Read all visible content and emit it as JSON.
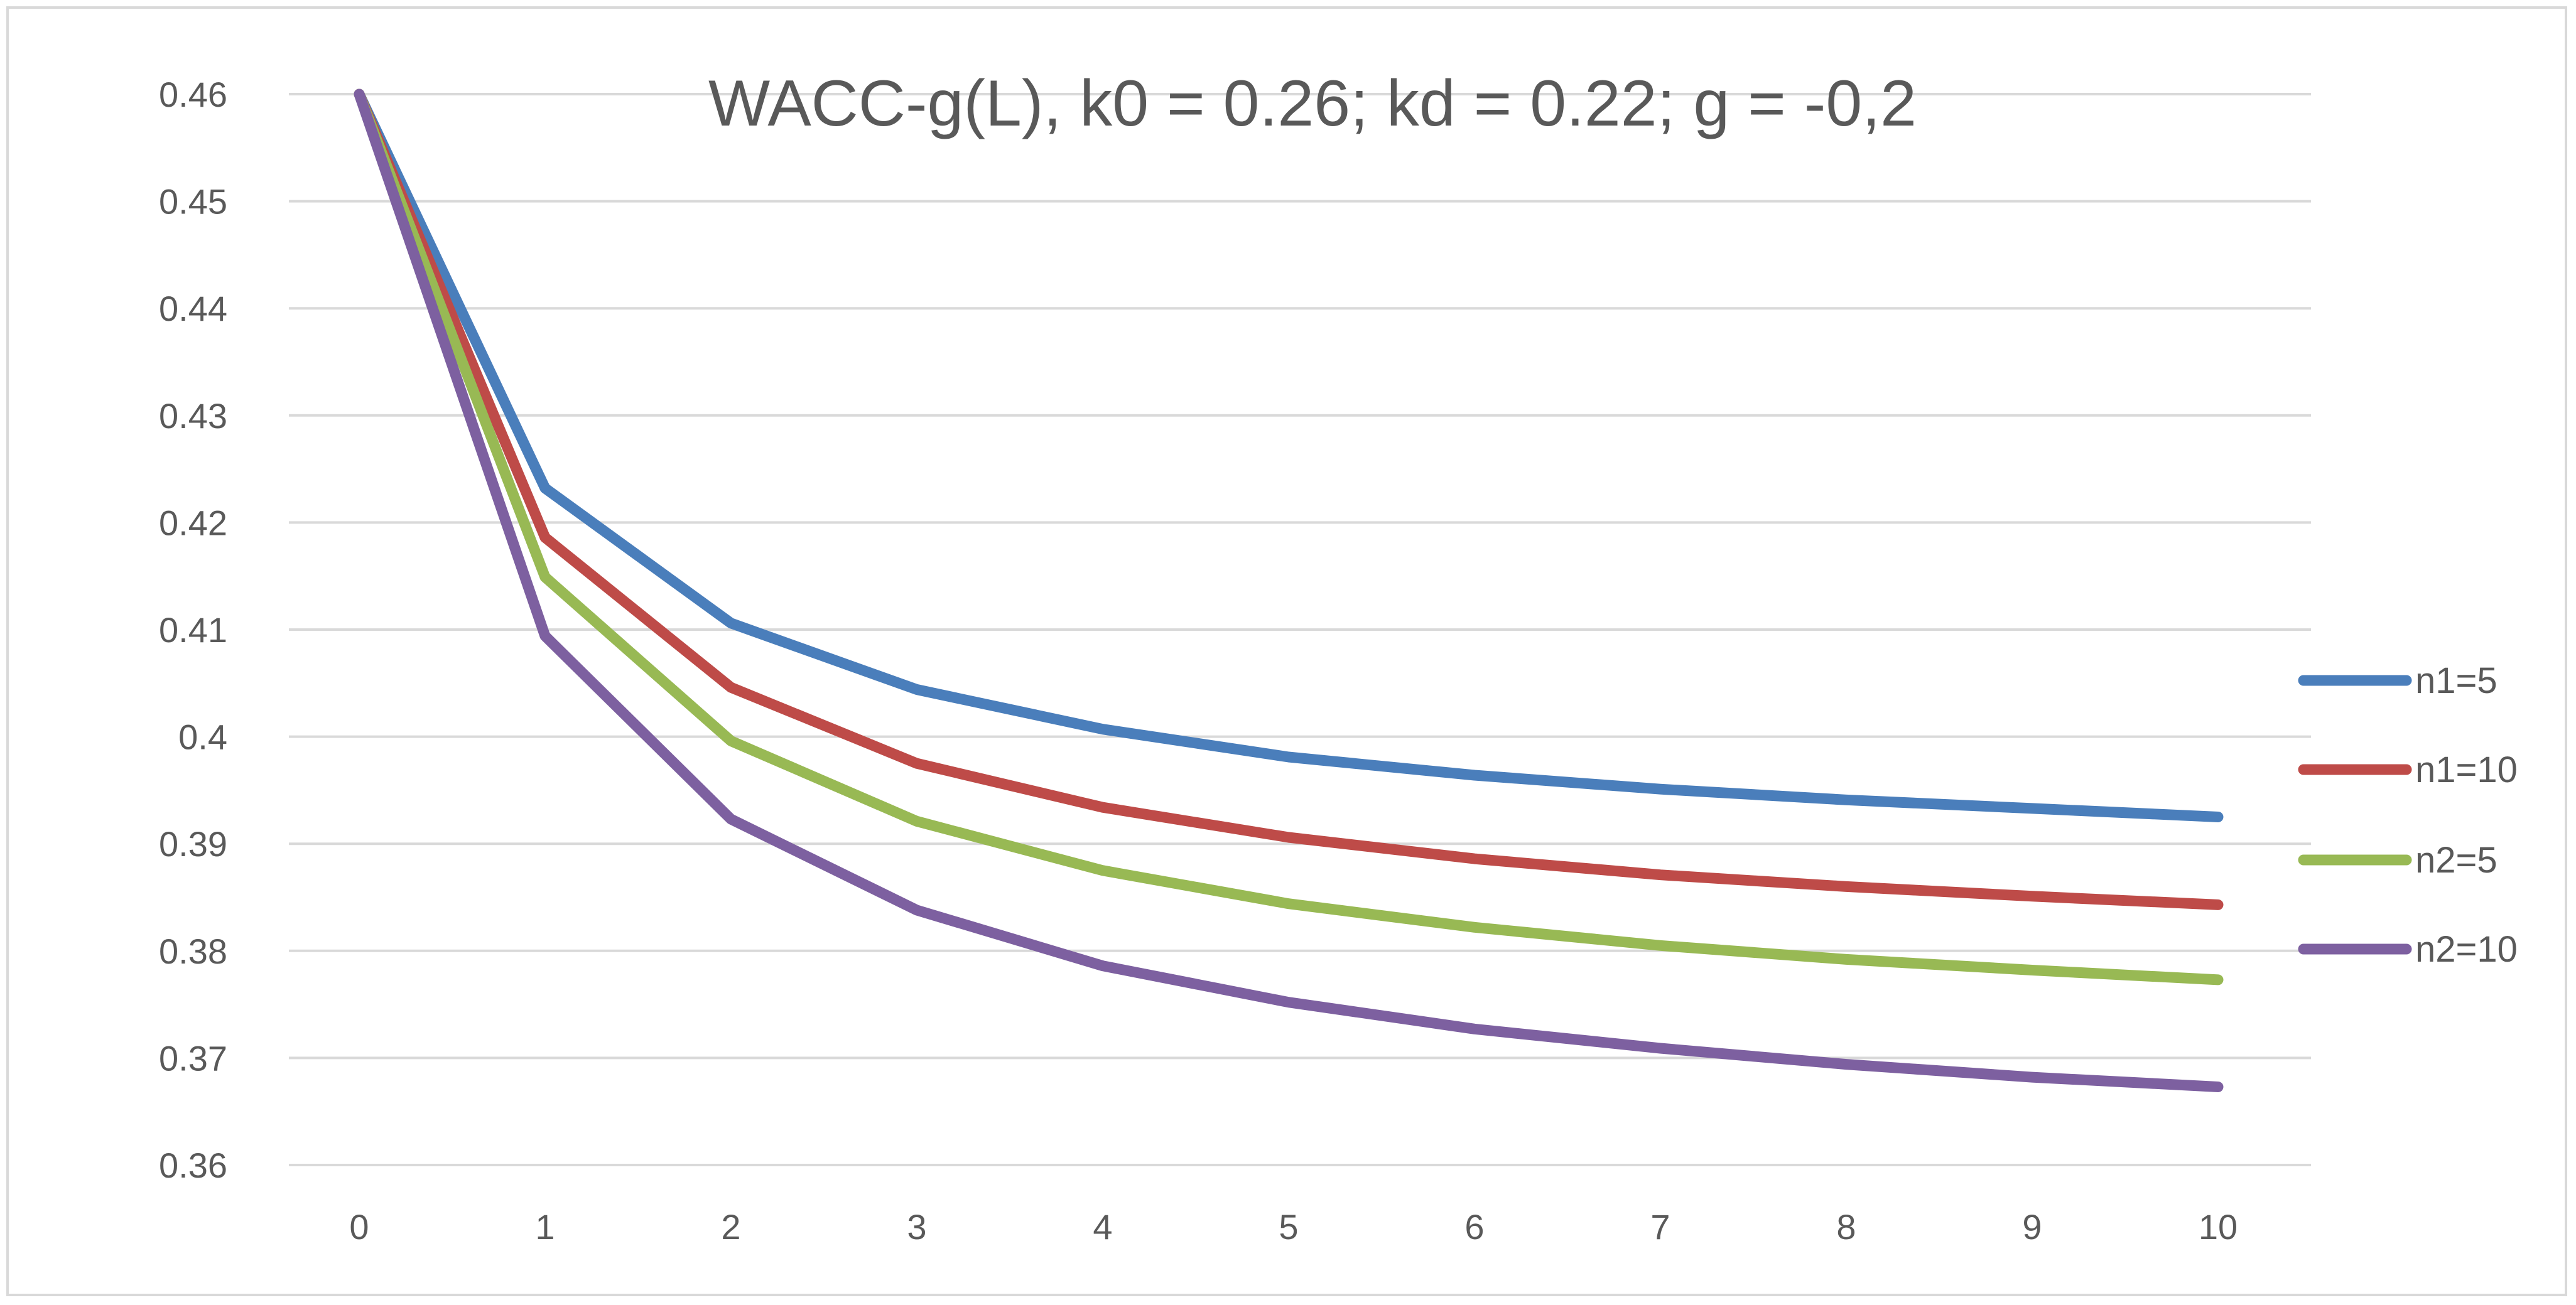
{
  "chart_data": {
    "type": "line",
    "title": "WACC-g(L), k0 = 0.26; kd = 0.22; g = -0,2",
    "xlabel": "",
    "ylabel": "",
    "x": [
      0,
      1,
      2,
      3,
      4,
      5,
      6,
      7,
      8,
      9,
      10
    ],
    "x_tick_labels": [
      "0",
      "1",
      "2",
      "3",
      "4",
      "5",
      "6",
      "7",
      "8",
      "9",
      "10"
    ],
    "ylim": [
      0.36,
      0.46
    ],
    "y_ticks": [
      0.46,
      0.45,
      0.44,
      0.43,
      0.42,
      0.41,
      0.4,
      0.39,
      0.38,
      0.37,
      0.36
    ],
    "y_tick_labels": [
      "0.46",
      "0.45",
      "0.44",
      "0.43",
      "0.42",
      "0.41",
      "0.4",
      "0.39",
      "0.38",
      "0.37",
      "0.36"
    ],
    "grid": true,
    "legend_position": "right",
    "series": [
      {
        "name": "n1=5",
        "color": "#4a7ebb",
        "values": [
          0.46,
          0.4232,
          0.4106,
          0.4044,
          0.4007,
          0.3981,
          0.3964,
          0.3951,
          0.3941,
          0.3933,
          0.3925
        ]
      },
      {
        "name": "n1=10",
        "color": "#be4b48",
        "values": [
          0.46,
          0.4186,
          0.4046,
          0.3975,
          0.3934,
          0.3906,
          0.3886,
          0.3871,
          0.386,
          0.3851,
          0.3843
        ]
      },
      {
        "name": "n2=5",
        "color": "#98b954",
        "values": [
          0.46,
          0.4149,
          0.3996,
          0.3921,
          0.3875,
          0.3844,
          0.3822,
          0.3805,
          0.3792,
          0.3782,
          0.3773
        ]
      },
      {
        "name": "n2=10",
        "color": "#7d60a0",
        "values": [
          0.46,
          0.4094,
          0.3923,
          0.3838,
          0.3786,
          0.3752,
          0.3727,
          0.3709,
          0.3694,
          0.3682,
          0.3673
        ]
      }
    ]
  }
}
